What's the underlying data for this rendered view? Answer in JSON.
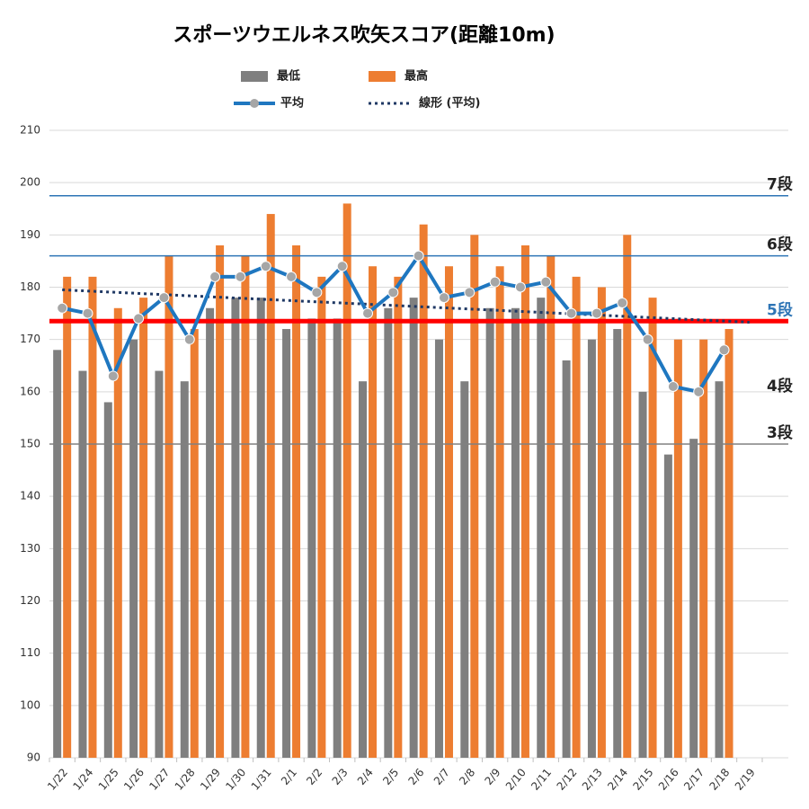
{
  "chart_data": {
    "type": "bar_line",
    "title": "スポーツウエルネス吹矢スコア(距離10m)",
    "categories": [
      "1/22",
      "1/24",
      "1/25",
      "1/26",
      "1/27",
      "1/28",
      "1/29",
      "1/30",
      "1/31",
      "2/1",
      "2/2",
      "2/3",
      "2/4",
      "2/5",
      "2/6",
      "2/7",
      "2/8",
      "2/9",
      "2/10",
      "2/11",
      "2/12",
      "2/13",
      "2/14",
      "2/15",
      "2/16",
      "2/17",
      "2/18",
      "2/19"
    ],
    "series": [
      {
        "name": "最低",
        "kind": "bar",
        "color": "#7f7f7f",
        "values": [
          168,
          164,
          158,
          170,
          164,
          162,
          176,
          178,
          178,
          172,
          174,
          174,
          162,
          176,
          178,
          170,
          162,
          176,
          176,
          178,
          166,
          170,
          172,
          160,
          148,
          151,
          162,
          null
        ]
      },
      {
        "name": "最高",
        "kind": "bar",
        "color": "#ed7d31",
        "values": [
          182,
          182,
          176,
          178,
          186,
          172,
          188,
          186,
          194,
          188,
          182,
          196,
          184,
          182,
          192,
          184,
          190,
          184,
          188,
          186,
          182,
          180,
          190,
          178,
          170,
          170,
          172,
          null
        ]
      },
      {
        "name": "平均",
        "kind": "line",
        "color": "#1f77c0",
        "marker_color": "#a6a6a6",
        "values": [
          176,
          175,
          163,
          174,
          178,
          170,
          182,
          182,
          184,
          182,
          179,
          184,
          175,
          179,
          186,
          178,
          179,
          181,
          180,
          181,
          175,
          175,
          177,
          170,
          161,
          160,
          168,
          null
        ]
      }
    ],
    "trend": {
      "name": "線形 (平均)",
      "color": "#1f3864",
      "start": 179.5,
      "end": 173.3
    },
    "reference_lines": [
      {
        "label": "7段",
        "value": 197.5,
        "color": "#2e75b6",
        "width": 1.5,
        "label_color": "#222",
        "show_line": true
      },
      {
        "label": "6段",
        "value": 186,
        "color": "#2e75b6",
        "width": 1.5,
        "label_color": "#222",
        "show_line": true
      },
      {
        "label": "5段",
        "value": 173.5,
        "color": "#ff0000",
        "width": 5,
        "label_color": "#2e75b6",
        "show_line": true
      },
      {
        "label": "4段",
        "value": 161,
        "color": "#222",
        "width": 0,
        "label_color": "#222",
        "show_line": false
      },
      {
        "label": "3段",
        "value": 150,
        "color": "#808080",
        "width": 1.5,
        "label_color": "#222",
        "show_line": true
      }
    ],
    "ylim": [
      90,
      210
    ],
    "yticks": [
      90,
      100,
      110,
      120,
      130,
      140,
      150,
      160,
      170,
      180,
      190,
      200,
      210
    ],
    "grid": true
  }
}
